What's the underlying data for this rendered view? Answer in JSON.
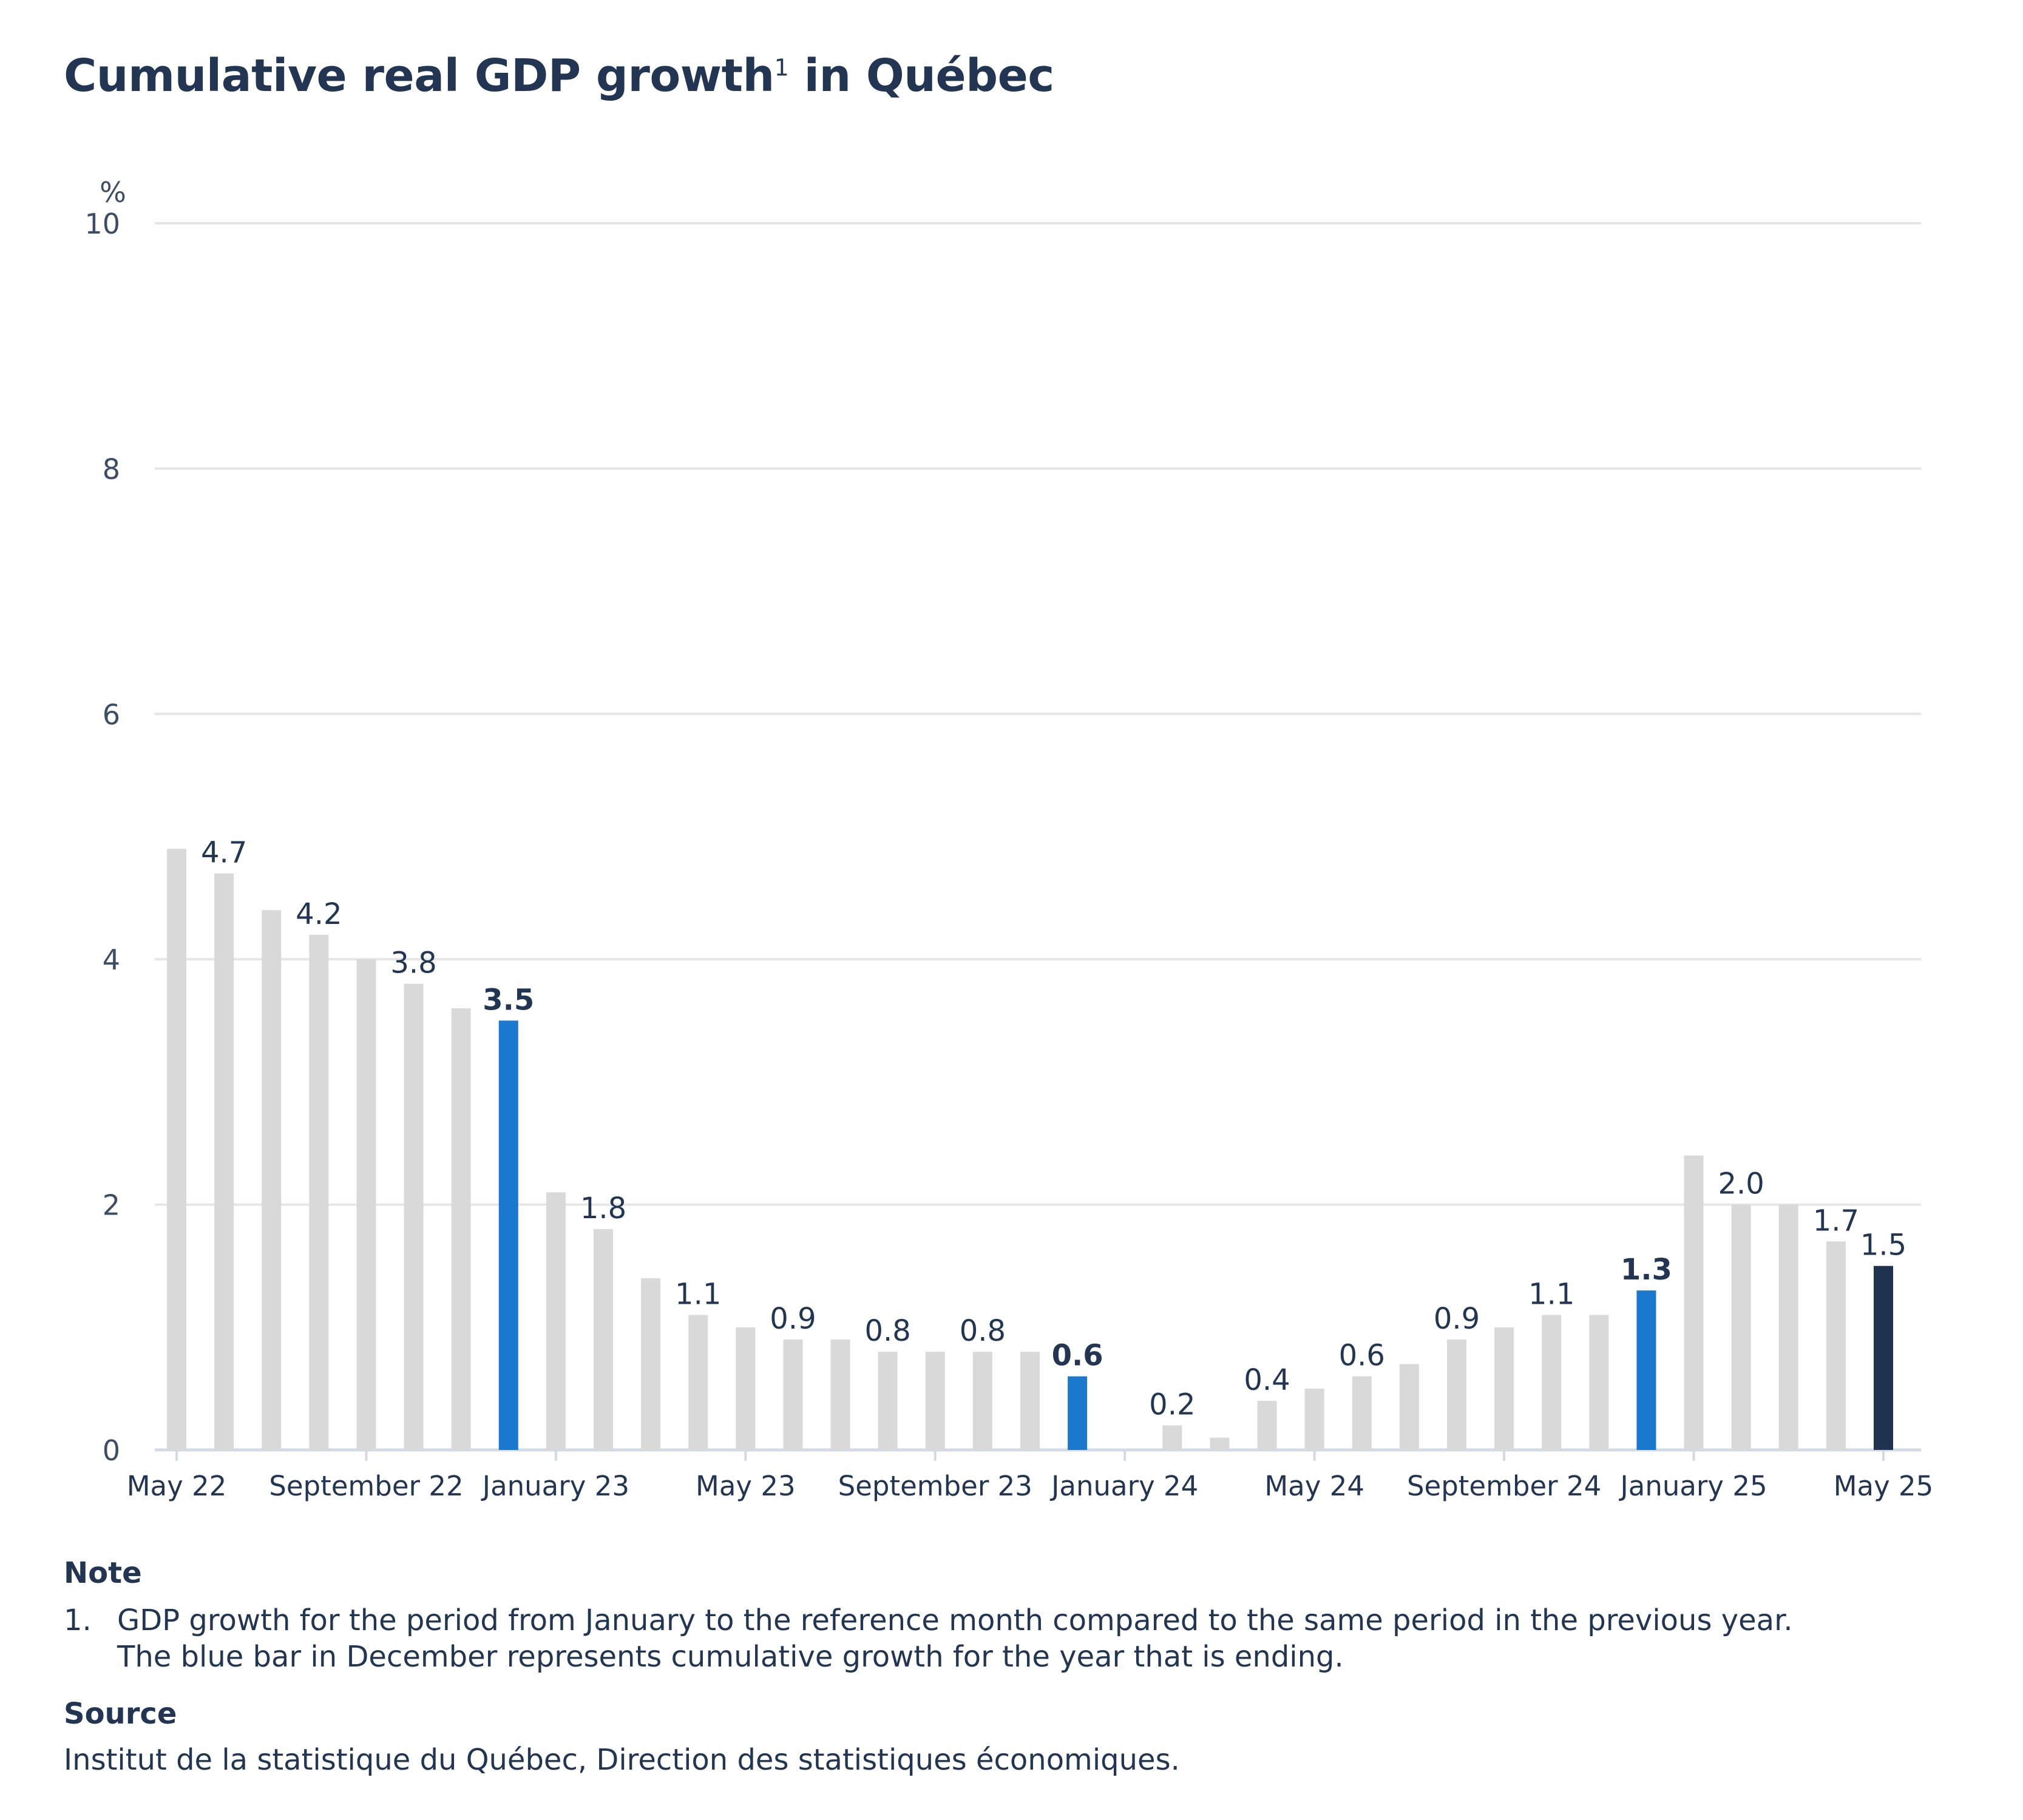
{
  "title": {
    "text": "Cumulative real GDP growth",
    "sup": "1",
    "suffix": " in Québec"
  },
  "chart_data": {
    "type": "bar",
    "ylabel": "%",
    "ylim": [
      0,
      10
    ],
    "yticks": [
      0,
      2,
      4,
      6,
      8,
      10
    ],
    "grid": true,
    "categories": [
      "May 22",
      "June 22",
      "July 22",
      "August 22",
      "September 22",
      "October 22",
      "November 22",
      "December 22",
      "January 23",
      "February 23",
      "March 23",
      "April 23",
      "May 23",
      "June 23",
      "July 23",
      "August 23",
      "September 23",
      "October 23",
      "November 23",
      "December 23",
      "January 24",
      "February 24",
      "March 24",
      "April 24",
      "May 24",
      "June 24",
      "July 24",
      "August 24",
      "September 24",
      "October 24",
      "November 24",
      "December 24",
      "January 25",
      "February 25",
      "March 25",
      "April 25",
      "May 25"
    ],
    "values": [
      4.9,
      4.7,
      4.4,
      4.2,
      4.0,
      3.8,
      3.6,
      3.5,
      2.1,
      1.8,
      1.4,
      1.1,
      1.0,
      0.9,
      0.9,
      0.8,
      0.8,
      0.8,
      0.8,
      0.6,
      0.0,
      0.2,
      0.1,
      0.4,
      0.5,
      0.6,
      0.7,
      0.9,
      1.0,
      1.1,
      1.1,
      1.3,
      2.4,
      2.0,
      2.0,
      1.7,
      1.5
    ],
    "data_labels": [
      {
        "index": 1,
        "text": "4.7"
      },
      {
        "index": 3,
        "text": "4.2"
      },
      {
        "index": 5,
        "text": "3.8"
      },
      {
        "index": 7,
        "text": "3.5",
        "bold": true
      },
      {
        "index": 9,
        "text": "1.8"
      },
      {
        "index": 11,
        "text": "1.1"
      },
      {
        "index": 13,
        "text": "0.9"
      },
      {
        "index": 15,
        "text": "0.8"
      },
      {
        "index": 17,
        "text": "0.8"
      },
      {
        "index": 19,
        "text": "0.6",
        "bold": true
      },
      {
        "index": 21,
        "text": "0.2"
      },
      {
        "index": 23,
        "text": "0.4"
      },
      {
        "index": 25,
        "text": "0.6"
      },
      {
        "index": 27,
        "text": "0.9"
      },
      {
        "index": 29,
        "text": "1.1"
      },
      {
        "index": 31,
        "text": "1.3",
        "bold": true
      },
      {
        "index": 33,
        "text": "2.0"
      },
      {
        "index": 35,
        "text": "1.7"
      },
      {
        "index": 36,
        "text": "1.5"
      }
    ],
    "x_tick_labels": [
      {
        "index": 0,
        "text": "May 22"
      },
      {
        "index": 4,
        "text": "September 22"
      },
      {
        "index": 8,
        "text": "January 23"
      },
      {
        "index": 12,
        "text": "May 23"
      },
      {
        "index": 16,
        "text": "September 23"
      },
      {
        "index": 20,
        "text": "January 24"
      },
      {
        "index": 24,
        "text": "May 24"
      },
      {
        "index": 28,
        "text": "September 24"
      },
      {
        "index": 32,
        "text": "January 25"
      },
      {
        "index": 36,
        "text": "May 25"
      }
    ],
    "highlight_blue": [
      7,
      19,
      31
    ],
    "highlight_latest": [
      36
    ],
    "colors": {
      "default": "#d9d9d9",
      "december": "#1a78cf",
      "latest": "#1f3350",
      "grid": "#e6e6e6",
      "axis": "#d4dae5",
      "text": "#223654",
      "tick": "#3d4d66"
    }
  },
  "note": {
    "heading": "Note",
    "number": "1.",
    "lines": [
      "GDP growth for the period from January to the reference month compared to the same period in the previous year.",
      "The blue bar in December represents cumulative growth for the year that is ending."
    ]
  },
  "source": {
    "heading": "Source",
    "text": "Institut de la statistique du Québec, Direction des statistiques économiques."
  }
}
